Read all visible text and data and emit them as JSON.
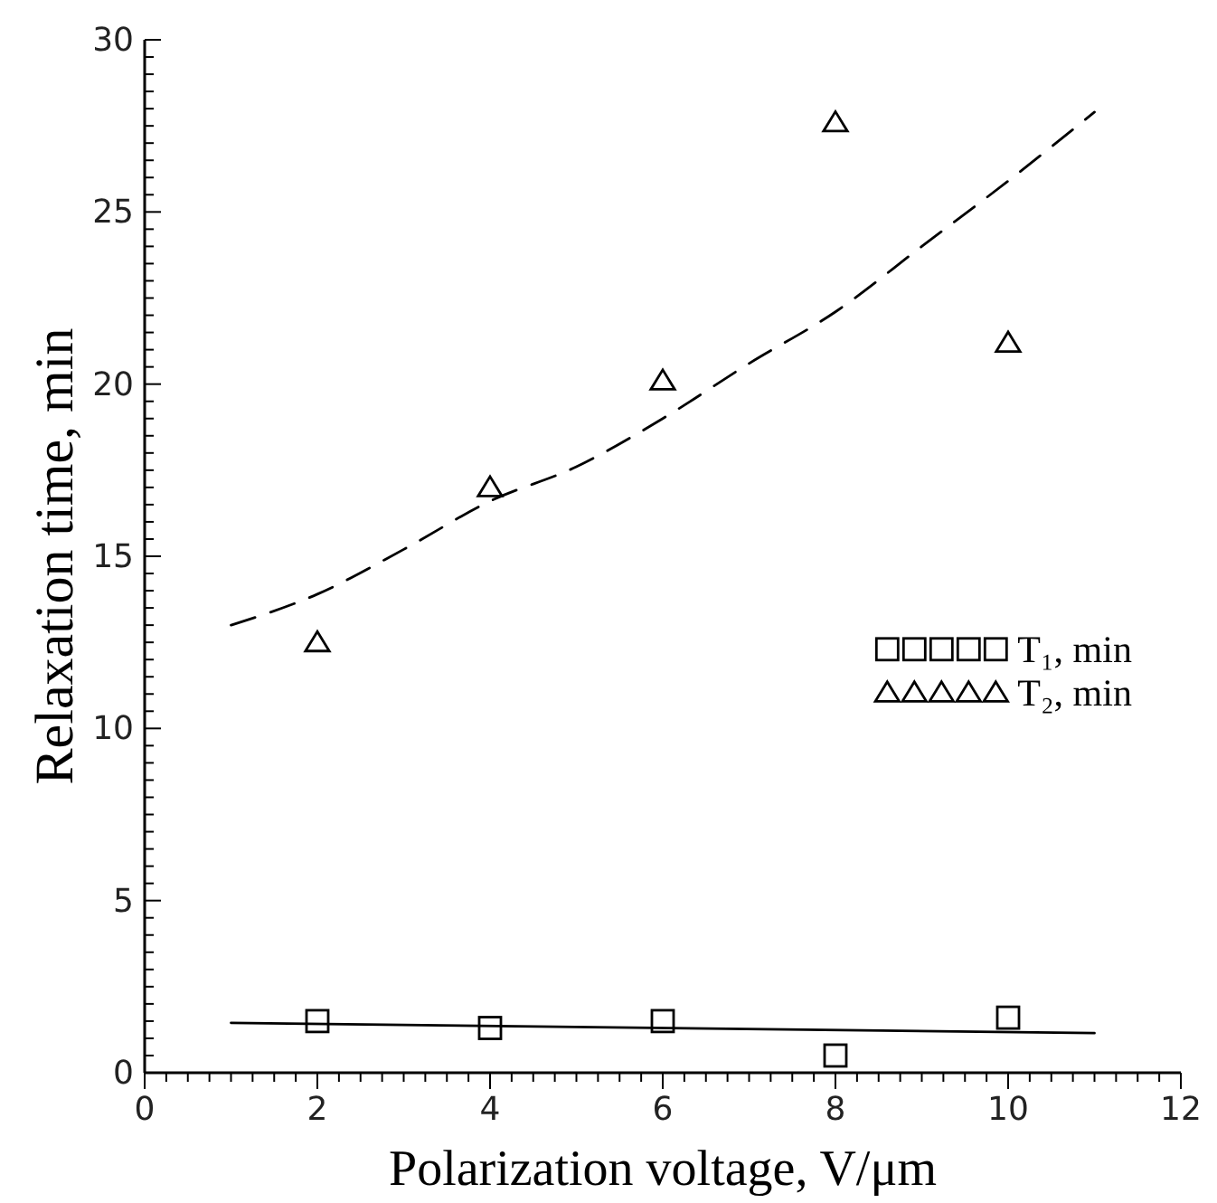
{
  "chart_data": {
    "type": "scatter",
    "xlabel": "Polarization voltage, V/μm",
    "ylabel": "Relaxation time, min",
    "xlim": [
      0,
      12
    ],
    "ylim": [
      0,
      30
    ],
    "xticks": [
      0,
      {
        "value": 0.25,
        "label": null
      },
      {
        "value": 0.5,
        "label": null
      },
      {
        "value": 0.75,
        "label": null
      },
      {
        "value": 1,
        "label": null
      },
      {
        "value": 1.25,
        "label": null
      },
      {
        "value": 1.5,
        "label": null
      },
      {
        "value": 1.75,
        "label": null
      },
      2,
      {
        "value": 2.25,
        "label": null
      },
      {
        "value": 2.5,
        "label": null
      },
      {
        "value": 2.75,
        "label": null
      },
      {
        "value": 3,
        "label": null
      },
      {
        "value": 3.25,
        "label": null
      },
      {
        "value": 3.5,
        "label": null
      },
      {
        "value": 3.75,
        "label": null
      },
      4,
      {
        "value": 4.25,
        "label": null
      },
      {
        "value": 4.5,
        "label": null
      },
      {
        "value": 4.75,
        "label": null
      },
      {
        "value": 5,
        "label": null
      },
      {
        "value": 5.25,
        "label": null
      },
      {
        "value": 5.5,
        "label": null
      },
      {
        "value": 5.75,
        "label": null
      },
      6,
      {
        "value": 6.25,
        "label": null
      },
      {
        "value": 6.5,
        "label": null
      },
      {
        "value": 6.75,
        "label": null
      },
      {
        "value": 7,
        "label": null
      },
      {
        "value": 7.25,
        "label": null
      },
      {
        "value": 7.5,
        "label": null
      },
      {
        "value": 7.75,
        "label": null
      },
      8,
      {
        "value": 8.25,
        "label": null
      },
      {
        "value": 8.5,
        "label": null
      },
      {
        "value": 8.75,
        "label": null
      },
      {
        "value": 9,
        "label": null
      },
      {
        "value": 9.25,
        "label": null
      },
      {
        "value": 9.5,
        "label": null
      },
      {
        "value": 9.75,
        "label": null
      },
      10,
      {
        "value": 10.25,
        "label": null
      },
      {
        "value": 10.5,
        "label": null
      },
      {
        "value": 10.75,
        "label": null
      },
      {
        "value": 11,
        "label": null
      },
      {
        "value": 11.25,
        "label": null
      },
      {
        "value": 11.5,
        "label": null
      },
      {
        "value": 11.75,
        "label": null
      },
      12
    ],
    "yticks": [
      0,
      {
        "value": 0.5,
        "label": null
      },
      {
        "value": 1,
        "label": null
      },
      {
        "value": 1.5,
        "label": null
      },
      {
        "value": 2,
        "label": null
      },
      {
        "value": 2.5,
        "label": null
      },
      {
        "value": 3,
        "label": null
      },
      {
        "value": 3.5,
        "label": null
      },
      {
        "value": 4,
        "label": null
      },
      {
        "value": 4.5,
        "label": null
      },
      5,
      {
        "value": 5.5,
        "label": null
      },
      {
        "value": 6,
        "label": null
      },
      {
        "value": 6.5,
        "label": null
      },
      {
        "value": 7,
        "label": null
      },
      {
        "value": 7.5,
        "label": null
      },
      {
        "value": 8,
        "label": null
      },
      {
        "value": 8.5,
        "label": null
      },
      {
        "value": 9,
        "label": null
      },
      {
        "value": 9.5,
        "label": null
      },
      10,
      {
        "value": 10.5,
        "label": null
      },
      {
        "value": 11,
        "label": null
      },
      {
        "value": 11.5,
        "label": null
      },
      {
        "value": 12,
        "label": null
      },
      {
        "value": 12.5,
        "label": null
      },
      {
        "value": 13,
        "label": null
      },
      {
        "value": 13.5,
        "label": null
      },
      {
        "value": 14,
        "label": null
      },
      {
        "value": 14.5,
        "label": null
      },
      15,
      {
        "value": 15.5,
        "label": null
      },
      {
        "value": 16,
        "label": null
      },
      {
        "value": 16.5,
        "label": null
      },
      {
        "value": 17,
        "label": null
      },
      {
        "value": 17.5,
        "label": null
      },
      {
        "value": 18,
        "label": null
      },
      {
        "value": 18.5,
        "label": null
      },
      {
        "value": 19,
        "label": null
      },
      {
        "value": 19.5,
        "label": null
      },
      20,
      {
        "value": 20.5,
        "label": null
      },
      {
        "value": 21,
        "label": null
      },
      {
        "value": 21.5,
        "label": null
      },
      {
        "value": 22,
        "label": null
      },
      {
        "value": 22.5,
        "label": null
      },
      {
        "value": 23,
        "label": null
      },
      {
        "value": 23.5,
        "label": null
      },
      {
        "value": 24,
        "label": null
      },
      {
        "value": 24.5,
        "label": null
      },
      25,
      {
        "value": 25.5,
        "label": null
      },
      {
        "value": 26,
        "label": null
      },
      {
        "value": 26.5,
        "label": null
      },
      {
        "value": 27,
        "label": null
      },
      {
        "value": 27.5,
        "label": null
      },
      {
        "value": 28,
        "label": null
      },
      {
        "value": 28.5,
        "label": null
      },
      {
        "value": 29,
        "label": null
      },
      {
        "value": 29.5,
        "label": null
      },
      30
    ],
    "grid": false,
    "legend": "right",
    "series": [
      {
        "name": "T₁, min",
        "marker": "square",
        "color": "#000000",
        "x": [
          2,
          4,
          6,
          8,
          10
        ],
        "values": [
          1.5,
          1.3,
          1.5,
          0.5,
          1.6
        ]
      },
      {
        "name": "T₂, min",
        "marker": "triangle",
        "color": "#000000",
        "x": [
          2,
          4,
          6,
          8,
          10
        ],
        "values": [
          12.5,
          17.0,
          20.1,
          27.6,
          21.2
        ]
      },
      {
        "type": "line",
        "line_style": "solid",
        "color": "#000000",
        "x": [
          1,
          11
        ],
        "values": [
          1.45,
          1.15
        ]
      },
      {
        "type": "line",
        "line_style": "dashed",
        "color": "#000000",
        "x": [
          1,
          2,
          3,
          4,
          5,
          6,
          7,
          8,
          9,
          10,
          11
        ],
        "values": [
          13.0,
          13.9,
          15.2,
          16.6,
          17.6,
          19.0,
          20.6,
          22.1,
          24.0,
          25.9,
          27.9
        ]
      }
    ]
  }
}
